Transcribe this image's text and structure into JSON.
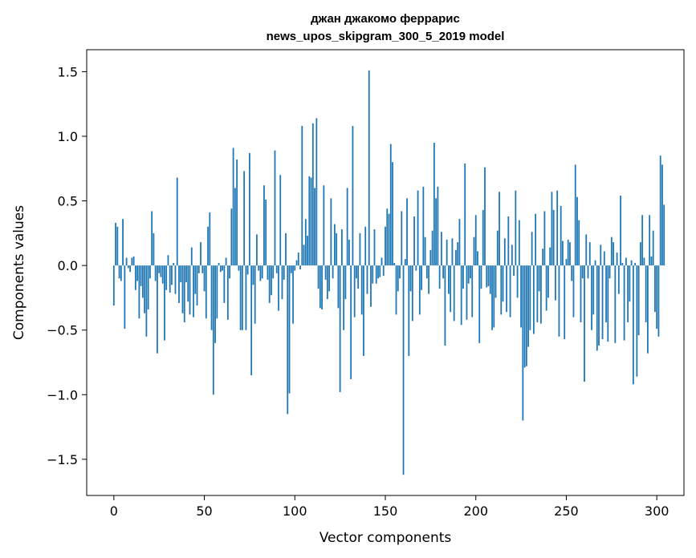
{
  "chart_data": {
    "type": "bar",
    "title_line1": "джан джакомо феррарис",
    "title_line2": "news_upos_skipgram_300_5_2019 model",
    "xlabel": "Vector components",
    "ylabel": "Components values",
    "xlim": [
      -15,
      315
    ],
    "ylim": [
      -1.78,
      1.67
    ],
    "xticks": [
      0,
      50,
      100,
      150,
      200,
      250,
      300
    ],
    "yticks": [
      -1.5,
      -1.0,
      -0.5,
      0.0,
      0.5,
      1.0,
      1.5
    ],
    "ytick_labels": [
      "−1.5",
      "−1.0",
      "−0.5",
      "0.0",
      "0.5",
      "1.0",
      "1.5"
    ],
    "bar_color": "#1f77b4",
    "grid": false,
    "values": [
      -0.31,
      0.33,
      0.3,
      -0.1,
      -0.12,
      0.36,
      -0.49,
      0.06,
      -0.02,
      -0.05,
      0.06,
      0.07,
      -0.19,
      -0.12,
      -0.41,
      -0.16,
      -0.25,
      -0.37,
      -0.55,
      -0.34,
      -0.1,
      0.42,
      0.25,
      -0.12,
      -0.68,
      -0.06,
      -0.09,
      -0.14,
      -0.58,
      -0.19,
      0.08,
      -0.21,
      -0.15,
      0.02,
      -0.22,
      0.68,
      -0.29,
      -0.13,
      -0.37,
      -0.44,
      -0.13,
      -0.28,
      -0.38,
      0.14,
      -0.4,
      -0.22,
      -0.31,
      -0.06,
      0.18,
      -0.06,
      -0.2,
      -0.41,
      0.3,
      0.41,
      -0.5,
      -1.0,
      -0.6,
      -0.41,
      0.02,
      -0.05,
      -0.04,
      -0.29,
      0.06,
      -0.42,
      -0.1,
      0.44,
      0.91,
      0.6,
      0.82,
      -0.04,
      -0.5,
      -0.5,
      0.73,
      -0.5,
      -0.07,
      0.87,
      -0.85,
      -0.15,
      -0.45,
      0.24,
      -0.04,
      -0.12,
      -0.1,
      0.62,
      0.51,
      -0.11,
      -0.29,
      -0.23,
      -0.1,
      0.89,
      -0.06,
      -0.35,
      0.7,
      -0.26,
      -0.11,
      0.25,
      -1.15,
      -0.99,
      -0.06,
      -0.45,
      -0.04,
      0.04,
      0.1,
      -0.03,
      1.08,
      0.16,
      0.36,
      0.23,
      0.69,
      0.68,
      1.1,
      0.6,
      1.14,
      -0.18,
      -0.33,
      -0.34,
      0.62,
      -0.11,
      -0.26,
      -0.2,
      0.52,
      -0.1,
      0.32,
      0.25,
      -0.33,
      -0.98,
      0.28,
      -0.5,
      -0.26,
      0.6,
      0.2,
      -0.88,
      1.08,
      -0.4,
      -0.1,
      -0.18,
      0.25,
      -0.38,
      -0.7,
      0.3,
      -0.22,
      1.51,
      -0.32,
      -0.14,
      0.28,
      -0.14,
      -0.1,
      -0.09,
      0.06,
      -0.08,
      0.3,
      0.44,
      0.4,
      0.94,
      0.8,
      0.02,
      -0.38,
      -0.2,
      -0.1,
      0.42,
      -1.62,
      0.05,
      0.52,
      -0.7,
      -0.2,
      -0.43,
      0.38,
      -0.04,
      0.58,
      -0.38,
      -0.19,
      0.61,
      0.22,
      -0.1,
      -0.22,
      0.12,
      0.27,
      0.95,
      0.52,
      0.61,
      -0.18,
      0.26,
      -0.1,
      -0.62,
      0.2,
      -0.22,
      -0.36,
      0.21,
      -0.43,
      0.12,
      0.18,
      0.36,
      -0.46,
      -0.18,
      0.79,
      -0.42,
      -0.14,
      -0.1,
      -0.4,
      0.22,
      0.39,
      0.11,
      -0.6,
      -0.18,
      0.43,
      0.76,
      -0.17,
      -0.16,
      -0.22,
      -0.5,
      -0.48,
      -0.25,
      0.27,
      0.57,
      -0.38,
      -0.28,
      0.21,
      -0.36,
      0.38,
      -0.4,
      0.16,
      -0.08,
      0.58,
      -0.25,
      0.35,
      -0.48,
      -1.2,
      -0.79,
      -0.78,
      -0.63,
      -0.5,
      0.26,
      -0.53,
      0.4,
      -0.44,
      -0.2,
      -0.45,
      0.13,
      0.42,
      -0.35,
      -0.25,
      0.14,
      0.57,
      0.43,
      -0.27,
      0.58,
      -0.55,
      0.46,
      0.19,
      -0.57,
      0.05,
      0.2,
      0.18,
      -0.12,
      -0.4,
      0.78,
      0.53,
      0.35,
      -0.44,
      -0.1,
      -0.9,
      0.24,
      -0.1,
      0.18,
      -0.5,
      -0.38,
      0.04,
      -0.66,
      -0.62,
      0.16,
      -0.57,
      0.11,
      -0.44,
      -0.59,
      -0.1,
      0.22,
      0.18,
      -0.6,
      0.1,
      -0.22,
      0.54,
      0.02,
      -0.58,
      0.06,
      -0.44,
      -0.28,
      0.04,
      -0.92,
      0.02,
      -0.86,
      -0.54,
      0.18,
      0.39,
      0.06,
      -0.44,
      -0.68,
      0.39,
      0.07,
      0.27,
      -0.36,
      -0.49,
      -0.55,
      0.85,
      0.78,
      0.47
    ]
  }
}
